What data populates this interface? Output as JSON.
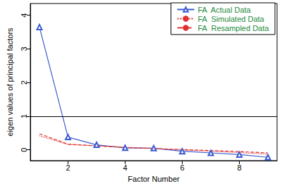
{
  "chart_data": {
    "type": "line",
    "x_label": "Factor Number",
    "y_label": "eigen values of principal factors",
    "x": [
      1,
      2,
      3,
      4,
      5,
      6,
      7,
      8,
      9
    ],
    "series": [
      {
        "name": "FA  Actual Data",
        "color": "#3a5bd0",
        "marker": "triangle",
        "line_style": "solid",
        "values": [
          3.65,
          0.38,
          0.15,
          0.06,
          0.05,
          -0.04,
          -0.09,
          -0.14,
          -0.22
        ]
      },
      {
        "name": "FA  Simulated Data",
        "color": "#e0302f",
        "marker": "none",
        "line_style": "dotted",
        "values": [
          0.42,
          0.16,
          0.12,
          0.08,
          0.04,
          0.0,
          -0.04,
          -0.08,
          -0.13
        ]
      },
      {
        "name": "FA  Resampled Data",
        "color": "#e0302f",
        "marker": "none",
        "line_style": "dashed",
        "values": [
          0.48,
          0.17,
          0.12,
          0.07,
          0.04,
          0.01,
          -0.02,
          -0.05,
          -0.09
        ]
      }
    ],
    "hline": 1,
    "xlim": [
      0.68,
      9.32
    ],
    "xticks": [
      2,
      4,
      6,
      8
    ],
    "ylim": [
      -0.32,
      4.35
    ],
    "yticks": [
      0,
      1,
      2,
      3,
      4
    ],
    "grid": false,
    "legend": "top-right"
  }
}
